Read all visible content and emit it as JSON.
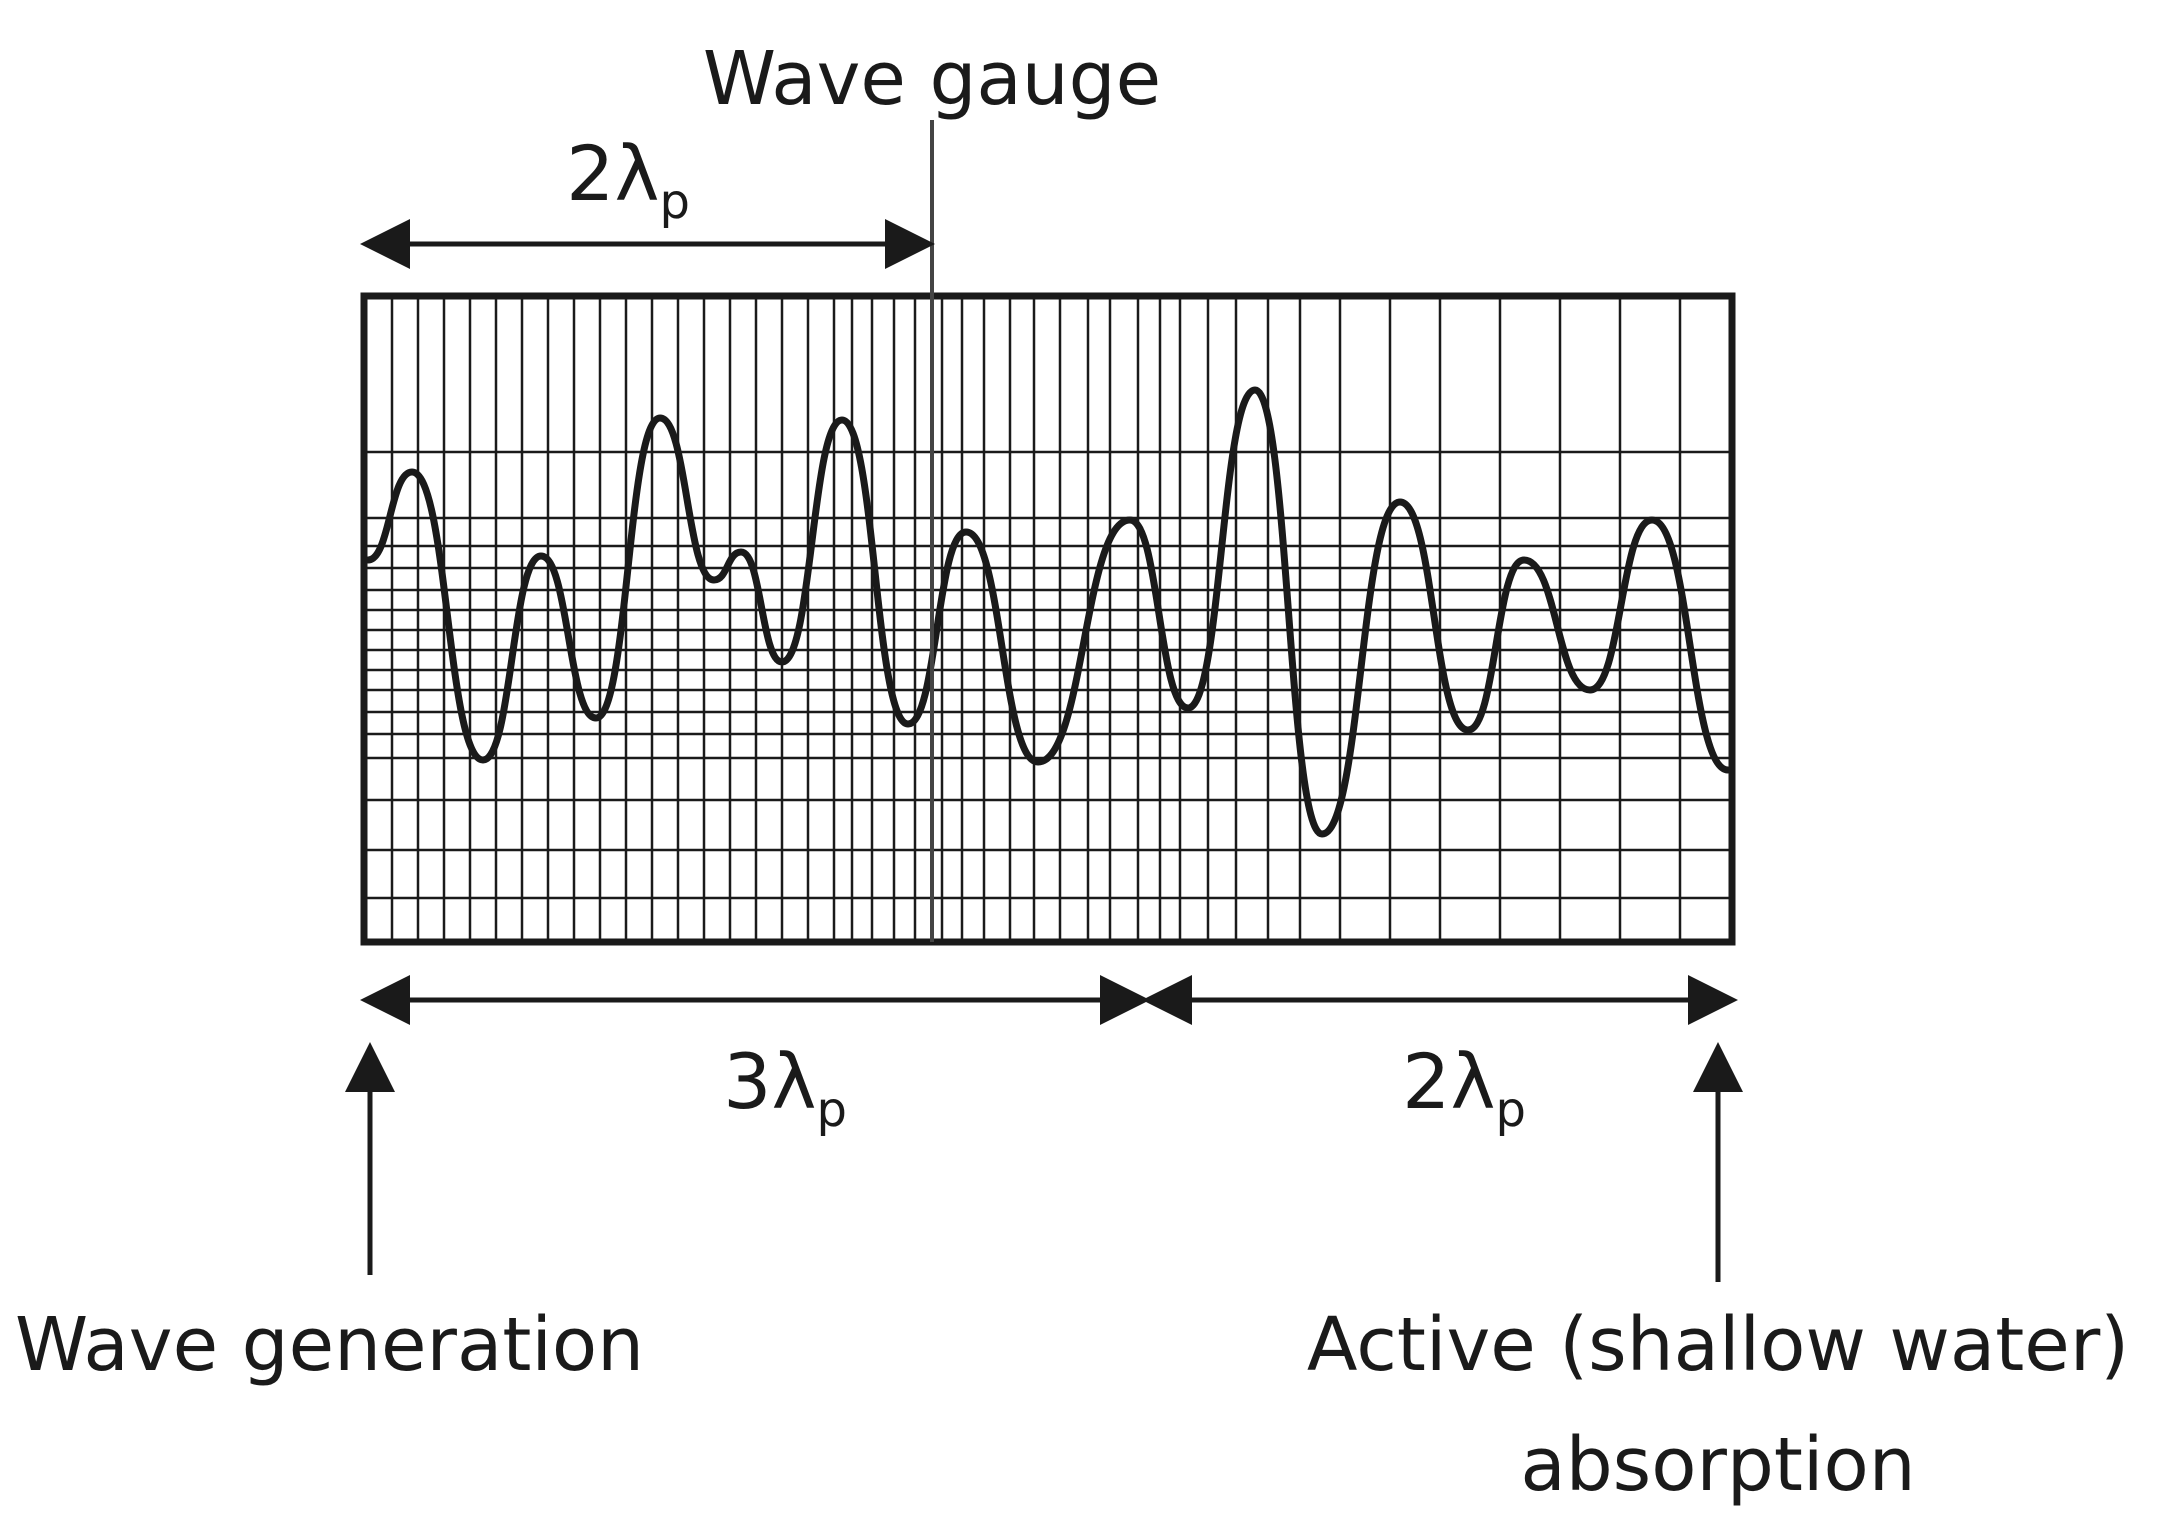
{
  "labels": {
    "gauge": "Wave gauge",
    "generation": "Wave generation",
    "absorption_line1": "Active (shallow water)",
    "absorption_line2": "absorption"
  },
  "dimensions": {
    "top_span": {
      "coefficient": "2",
      "symbol": "λ",
      "subscript": "p"
    },
    "bottom_left_span": {
      "coefficient": "3",
      "symbol": "λ",
      "subscript": "p"
    },
    "bottom_right_span": {
      "coefficient": "2",
      "symbol": "λ",
      "subscript": "p"
    }
  },
  "colors": {
    "ink": "#1a1a1a",
    "background": "#ffffff"
  }
}
